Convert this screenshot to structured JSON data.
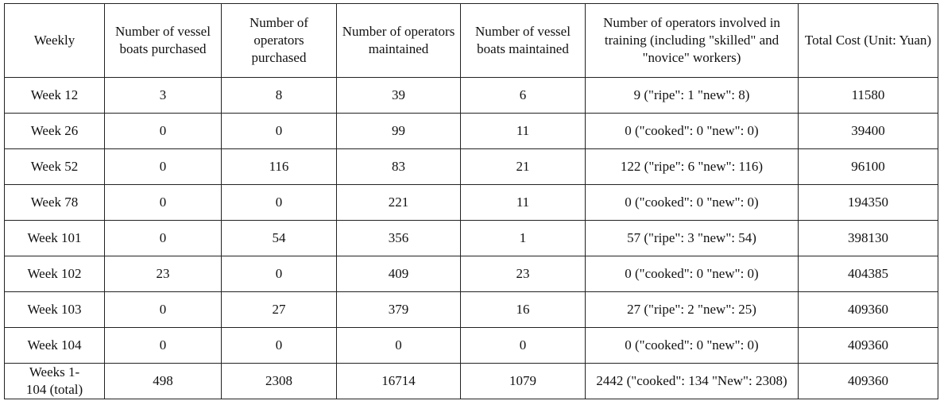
{
  "table": {
    "header": [
      "Weekly",
      "Number of vessel boats purchased",
      "Number of operators purchased",
      "Number of operators maintained",
      "Number of vessel boats maintained",
      "Number of operators involved in training (including \"skilled\" and \"novice\" workers)",
      "Total Cost (Unit: Yuan)"
    ],
    "rows": [
      [
        "Week 12",
        3,
        8,
        39,
        6,
        "9 (\"ripe\": 1 \"new\": 8)",
        11580
      ],
      [
        "Week 26",
        0,
        0,
        99,
        11,
        "0 (\"cooked\": 0 \"new\": 0)",
        39400
      ],
      [
        "Week 52",
        0,
        116,
        83,
        21,
        "122 (\"ripe\": 6 \"new\": 116)",
        96100
      ],
      [
        "Week 78",
        0,
        0,
        221,
        11,
        "0 (\"cooked\": 0 \"new\": 0)",
        194350
      ],
      [
        "Week 101",
        0,
        54,
        356,
        1,
        "57 (\"ripe\": 3 \"new\": 54)",
        398130
      ],
      [
        "Week 102",
        23,
        0,
        409,
        23,
        "0 (\"cooked\": 0 \"new\": 0)",
        404385
      ],
      [
        "Week 103",
        0,
        27,
        379,
        16,
        "27 (\"ripe\": 2 \"new\": 25)",
        409360
      ],
      [
        "Week 104",
        0,
        0,
        0,
        0,
        "0 (\"cooked\": 0 \"new\": 0)",
        409360
      ],
      [
        "Weeks 1-104 (total)",
        498,
        2308,
        16714,
        1079,
        "2442 (\"cooked\": 134 \"New\": 2308)",
        409360
      ]
    ]
  }
}
